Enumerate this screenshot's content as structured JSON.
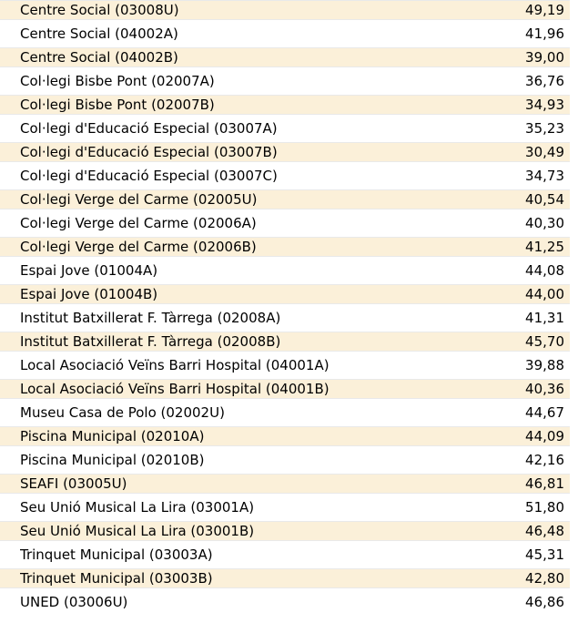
{
  "colors": {
    "row_alt_bg": "#fbf0d9",
    "row_bg": "#ffffff",
    "row_border": "#e9e9e9",
    "text": "#000000"
  },
  "table": {
    "rows": [
      {
        "name": "Centre Social (03008U)",
        "value": "49,19"
      },
      {
        "name": "Centre Social (04002A)",
        "value": "41,96"
      },
      {
        "name": "Centre Social (04002B)",
        "value": "39,00"
      },
      {
        "name": "Col·legi Bisbe Pont (02007A)",
        "value": "36,76"
      },
      {
        "name": "Col·legi Bisbe Pont (02007B)",
        "value": "34,93"
      },
      {
        "name": "Col·legi d'Educació Especial (03007A)",
        "value": "35,23"
      },
      {
        "name": "Col·legi d'Educació Especial (03007B)",
        "value": "30,49"
      },
      {
        "name": "Col·legi d'Educació Especial (03007C)",
        "value": "34,73"
      },
      {
        "name": "Col·legi Verge del Carme (02005U)",
        "value": "40,54"
      },
      {
        "name": "Col·legi Verge del Carme (02006A)",
        "value": "40,30"
      },
      {
        "name": "Col·legi Verge del Carme (02006B)",
        "value": "41,25"
      },
      {
        "name": "Espai Jove (01004A)",
        "value": "44,08"
      },
      {
        "name": "Espai Jove (01004B)",
        "value": "44,00"
      },
      {
        "name": "Institut Batxillerat F. Tàrrega (02008A)",
        "value": "41,31"
      },
      {
        "name": "Institut Batxillerat F. Tàrrega (02008B)",
        "value": "45,70"
      },
      {
        "name": "Local Asociació Veïns Barri Hospital (04001A)",
        "value": "39,88"
      },
      {
        "name": "Local Asociació Veïns Barri Hospital (04001B)",
        "value": "40,36"
      },
      {
        "name": "Museu Casa de Polo (02002U)",
        "value": "44,67"
      },
      {
        "name": "Piscina Municipal (02010A)",
        "value": "44,09"
      },
      {
        "name": "Piscina Municipal (02010B)",
        "value": "42,16"
      },
      {
        "name": "SEAFI (03005U)",
        "value": "46,81"
      },
      {
        "name": "Seu Unió Musical La Lira (03001A)",
        "value": "51,80"
      },
      {
        "name": "Seu Unió Musical La Lira (03001B)",
        "value": "46,48"
      },
      {
        "name": "Trinquet Municipal (03003A)",
        "value": "45,31"
      },
      {
        "name": "Trinquet Municipal (03003B)",
        "value": "42,80"
      },
      {
        "name": "UNED (03006U)",
        "value": "46,86"
      }
    ]
  },
  "chart_data": {
    "type": "table",
    "columns": [
      "polling_station",
      "value"
    ],
    "rows": [
      [
        "Centre Social (03008U)",
        49.19
      ],
      [
        "Centre Social (04002A)",
        41.96
      ],
      [
        "Centre Social (04002B)",
        39.0
      ],
      [
        "Col·legi Bisbe Pont (02007A)",
        36.76
      ],
      [
        "Col·legi Bisbe Pont (02007B)",
        34.93
      ],
      [
        "Col·legi d'Educació Especial (03007A)",
        35.23
      ],
      [
        "Col·legi d'Educació Especial (03007B)",
        30.49
      ],
      [
        "Col·legi d'Educació Especial (03007C)",
        34.73
      ],
      [
        "Col·legi Verge del Carme (02005U)",
        40.54
      ],
      [
        "Col·legi Verge del Carme (02006A)",
        40.3
      ],
      [
        "Col·legi Verge del Carme (02006B)",
        41.25
      ],
      [
        "Espai Jove (01004A)",
        44.08
      ],
      [
        "Espai Jove (01004B)",
        44.0
      ],
      [
        "Institut Batxillerat F. Tàrrega (02008A)",
        41.31
      ],
      [
        "Institut Batxillerat F. Tàrrega (02008B)",
        45.7
      ],
      [
        "Local Asociació Veïns Barri Hospital (04001A)",
        39.88
      ],
      [
        "Local Asociació Veïns Barri Hospital (04001B)",
        40.36
      ],
      [
        "Museu Casa de Polo (02002U)",
        44.67
      ],
      [
        "Piscina Municipal (02010A)",
        44.09
      ],
      [
        "Piscina Municipal (02010B)",
        42.16
      ],
      [
        "SEAFI (03005U)",
        46.81
      ],
      [
        "Seu Unió Musical La Lira (03001A)",
        51.8
      ],
      [
        "Seu Unió Musical La Lira (03001B)",
        46.48
      ],
      [
        "Trinquet Municipal (03003A)",
        45.31
      ],
      [
        "Trinquet Municipal (03003B)",
        42.8
      ],
      [
        "UNED (03006U)",
        46.86
      ]
    ],
    "decimal_separator": ",",
    "striped": true,
    "stripe_starts_on_first_row": true
  }
}
